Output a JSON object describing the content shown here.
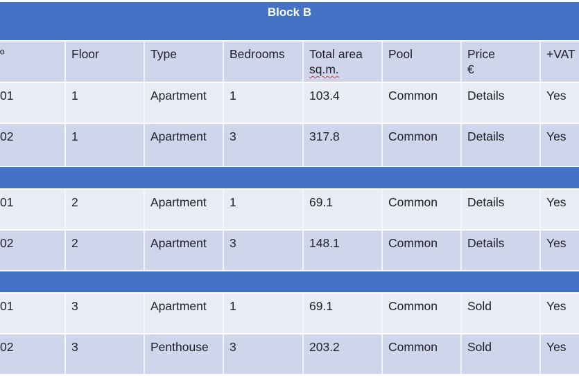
{
  "table": {
    "title": "Block B",
    "headers": [
      "º",
      "Floor",
      "Type",
      "Bedrooms",
      "Total area",
      "Pool",
      "Price",
      "+VAT"
    ],
    "header_units": {
      "4": "sq.m.",
      "6": "€"
    },
    "groups": [
      {
        "rows": [
          [
            "01",
            "1",
            "Apartment",
            "1",
            "103.4",
            "Common",
            "Details",
            "Yes"
          ],
          [
            "02",
            "1",
            "Apartment",
            "3",
            "317.8",
            "Common",
            "Details",
            "Yes"
          ]
        ]
      },
      {
        "rows": [
          [
            "01",
            "2",
            "Apartment",
            "1",
            "69.1",
            "Common",
            "Details",
            "Yes"
          ],
          [
            "02",
            "2",
            "Apartment",
            "3",
            "148.1",
            "Common",
            "Details",
            "Yes"
          ]
        ]
      },
      {
        "rows": [
          [
            "01",
            "3",
            "Apartment",
            "1",
            "69.1",
            "Common",
            "Sold",
            "Yes"
          ],
          [
            "02",
            "3",
            "Penthouse",
            "3",
            "203.2",
            "Common",
            "Sold",
            "Yes"
          ]
        ]
      }
    ]
  },
  "colors": {
    "band": "#4472c4",
    "row_light": "#e9ebf5",
    "row_dark": "#cfd5ea",
    "text": "#1f1f2a"
  }
}
